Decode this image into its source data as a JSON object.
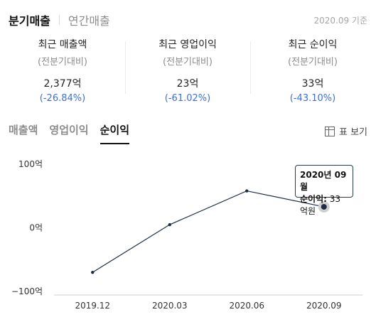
{
  "header": {
    "tabs": [
      {
        "label": "분기매출",
        "active": true
      },
      {
        "label": "연간매출",
        "active": false
      }
    ],
    "as_of": "2020.09 기준"
  },
  "summary": [
    {
      "label": "최근 매출액",
      "sub": "(전분기대비)",
      "value": "2,377억",
      "change": "(-26.84%)"
    },
    {
      "label": "최근 영업이익",
      "sub": "(전분기대비)",
      "value": "23억",
      "change": "(-61.02%)"
    },
    {
      "label": "최근 순이익",
      "sub": "(전분기대비)",
      "value": "33억",
      "change": "(-43.10%)"
    }
  ],
  "metric_tabs": [
    {
      "label": "매출액",
      "active": false
    },
    {
      "label": "영업이익",
      "active": false
    },
    {
      "label": "순이익",
      "active": true
    }
  ],
  "table_toggle_label": "표 보기",
  "colors": {
    "accent_blue": "#3d6fd6",
    "line": "#1e2d45"
  },
  "tooltip": {
    "title": "2020년 09월",
    "key": "순이익:",
    "value": "33억원"
  },
  "chart_data": {
    "type": "line",
    "categories": [
      "2019.12",
      "2020.03",
      "2020.06",
      "2020.09"
    ],
    "series": [
      {
        "values": [
          -70,
          5,
          58,
          33
        ]
      }
    ],
    "ylim": [
      -100,
      100
    ],
    "yticks": [
      100,
      0,
      -100
    ],
    "ytick_labels": [
      "100억",
      "0억",
      "−100억"
    ],
    "highlighted_index": 3
  }
}
